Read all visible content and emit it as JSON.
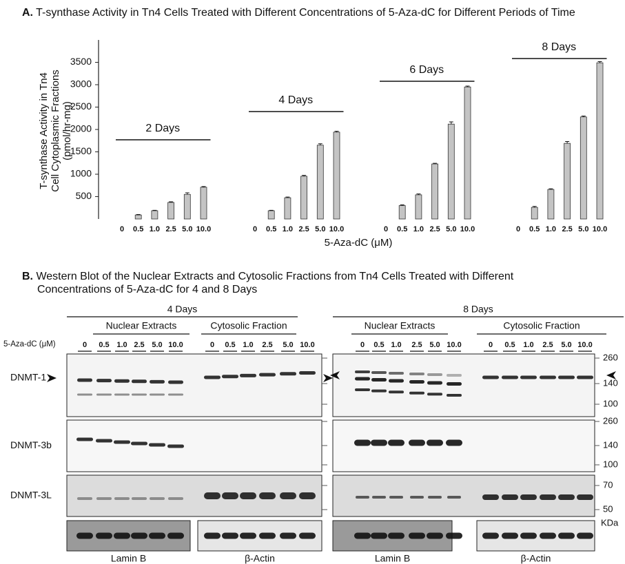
{
  "chart_data": {
    "type": "grouped-bar",
    "panel_label": "A.",
    "title": "T-synthase Activity in Tn4 Cells Treated with Different Concentrations of 5-Aza-dC for Different Periods of Time",
    "ylabel": [
      "T-synthase Activity in Tn4",
      "Cell Cytoplasmic Fractions",
      "(pmol/hr-mg)"
    ],
    "xlabel": "5-Aza-dC (μM)",
    "ylim": [
      0,
      4000
    ],
    "yticks": [
      500,
      1000,
      1500,
      2000,
      2500,
      3000,
      3500
    ],
    "color": "#c4c4c4",
    "groups": [
      {
        "name": "2 Days",
        "categories": [
          "0",
          "0.5",
          "1.0",
          "2.5",
          "5.0",
          "10.0"
        ],
        "values": [
          0,
          90,
          185,
          370,
          550,
          710
        ],
        "errors": [
          0,
          10,
          10,
          15,
          35,
          15
        ]
      },
      {
        "name": "4 Days",
        "categories": [
          "0",
          "0.5",
          "1.0",
          "2.5",
          "5.0",
          "10.0"
        ],
        "values": [
          0,
          185,
          475,
          955,
          1650,
          1940
        ],
        "errors": [
          0,
          10,
          15,
          20,
          30,
          20
        ]
      },
      {
        "name": "6 Days",
        "categories": [
          "0",
          "0.5",
          "1.0",
          "2.5",
          "5.0",
          "10.0"
        ],
        "values": [
          0,
          300,
          540,
          1230,
          2120,
          2950
        ],
        "errors": [
          0,
          15,
          20,
          15,
          50,
          20
        ]
      },
      {
        "name": "8 Days",
        "categories": [
          "0",
          "0.5",
          "1.0",
          "2.5",
          "5.0",
          "10.0"
        ],
        "values": [
          0,
          260,
          660,
          1690,
          2280,
          3490
        ],
        "errors": [
          0,
          20,
          15,
          40,
          20,
          25
        ]
      }
    ]
  },
  "figure_b": {
    "panel_label": "B.",
    "title": "Western Blot of the Nuclear Extracts and Cytosolic Fractions from Tn4 Cells Treated with Different Concentrations of 5-Aza-dC for 4 and 8 Days",
    "treatment_label": "5-Aza-dC (μM)",
    "days": [
      {
        "label": "4 Days",
        "fractions": [
          {
            "label": "Nuclear Extracts",
            "lanes": [
              "0",
              "0.5",
              "1.0",
              "2.5",
              "5.0",
              "10.0"
            ]
          },
          {
            "label": "Cytosolic Fraction",
            "lanes": [
              "0",
              "0.5",
              "1.0",
              "2.5",
              "5.0",
              "10.0"
            ]
          }
        ],
        "loading_controls": [
          "Lamin B",
          "β-Actin"
        ]
      },
      {
        "label": "8 Days",
        "fractions": [
          {
            "label": "Nuclear Extracts",
            "lanes": [
              "0",
              "0.5",
              "1.0",
              "2.5",
              "5.0",
              "10.0"
            ]
          },
          {
            "label": "Cytosolic Fraction",
            "lanes": [
              "0",
              "0.5",
              "1.0",
              "2.5",
              "5.0",
              "10.0"
            ]
          }
        ],
        "loading_controls": [
          "Lamin B",
          "β-Actin"
        ]
      }
    ],
    "rows": [
      {
        "label": "DNMT-1",
        "markers": [
          260,
          140,
          100
        ]
      },
      {
        "label": "DNMT-3b",
        "markers": [
          260,
          140,
          100
        ]
      },
      {
        "label": "DNMT-3L",
        "markers": [
          70,
          50
        ]
      }
    ],
    "marker_unit": "KDa"
  }
}
